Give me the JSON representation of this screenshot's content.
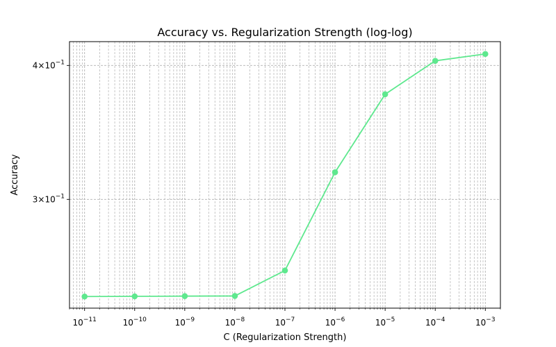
{
  "chart_data": {
    "type": "line",
    "title": "Accuracy vs. Regularization Strength (log-log)",
    "xlabel": "C (Regularization Strength)",
    "ylabel": "Accuracy",
    "x_scale": "log",
    "y_scale": "log",
    "xlim": [
      5e-12,
      0.002
    ],
    "ylim": [
      0.2375,
      0.421
    ],
    "grid": "major and minor, dashed, both axes",
    "x_ticks": [
      {
        "value": 1e-11,
        "base": "10",
        "exp": "−11"
      },
      {
        "value": 1e-10,
        "base": "10",
        "exp": "−10"
      },
      {
        "value": 1e-09,
        "base": "10",
        "exp": "−9"
      },
      {
        "value": 1e-08,
        "base": "10",
        "exp": "−8"
      },
      {
        "value": 1e-07,
        "base": "10",
        "exp": "−7"
      },
      {
        "value": 1e-06,
        "base": "10",
        "exp": "−6"
      },
      {
        "value": 1e-05,
        "base": "10",
        "exp": "−5"
      },
      {
        "value": 0.0001,
        "base": "10",
        "exp": "−4"
      },
      {
        "value": 0.001,
        "base": "10",
        "exp": "−3"
      }
    ],
    "y_ticks": [
      {
        "value": 0.3,
        "mant": "3",
        "base": "×10",
        "exp": "−1"
      },
      {
        "value": 0.4,
        "mant": "4",
        "base": "×10",
        "exp": "−1"
      }
    ],
    "series": [
      {
        "x": [
          1e-11,
          1e-10,
          1e-09,
          1e-08,
          1e-07,
          1e-06,
          1e-05,
          0.0001,
          0.001
        ],
        "y": [
          0.2435,
          0.2436,
          0.2437,
          0.2438,
          0.2575,
          0.318,
          0.376,
          0.404,
          0.41
        ],
        "color": "#5ee88e",
        "marker": "circle"
      }
    ]
  }
}
